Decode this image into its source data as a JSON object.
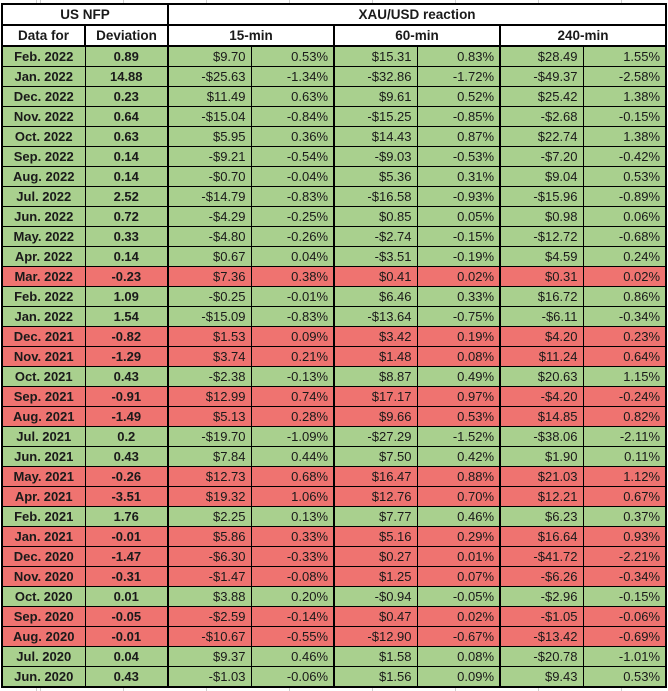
{
  "colors": {
    "positive_row": "#A9D08E",
    "negative_row": "#EF7370",
    "border": "#000000",
    "header_background": "#FFFFFF"
  },
  "chart_data": {
    "type": "table",
    "header": {
      "us_nfp": "US NFP",
      "reaction": "XAU/USD reaction",
      "data_for": "Data for",
      "deviation": "Deviation",
      "timeframes": [
        "15-min",
        "60-min",
        "240-min"
      ]
    },
    "columns": [
      "Data for",
      "Deviation",
      "15-min $",
      "15-min %",
      "60-min $",
      "60-min %",
      "240-min $",
      "240-min %"
    ],
    "rows": [
      {
        "tone": "green",
        "cells": [
          "Feb. 2022",
          "0.89",
          "$9.70",
          "0.53%",
          "$15.31",
          "0.83%",
          "$28.49",
          "1.55%"
        ]
      },
      {
        "tone": "green",
        "cells": [
          "Jan. 2022",
          "14.88",
          "-$25.63",
          "-1.34%",
          "-$32.86",
          "-1.72%",
          "-$49.37",
          "-2.58%"
        ]
      },
      {
        "tone": "green",
        "cells": [
          "Dec. 2022",
          "0.23",
          "$11.49",
          "0.63%",
          "$9.61",
          "0.52%",
          "$25.42",
          "1.38%"
        ]
      },
      {
        "tone": "green",
        "cells": [
          "Nov. 2022",
          "0.64",
          "-$15.04",
          "-0.84%",
          "-$15.25",
          "-0.85%",
          "-$2.68",
          "-0.15%"
        ]
      },
      {
        "tone": "green",
        "cells": [
          "Oct. 2022",
          "0.63",
          "$5.95",
          "0.36%",
          "$14.43",
          "0.87%",
          "$22.74",
          "1.38%"
        ]
      },
      {
        "tone": "green",
        "cells": [
          "Sep. 2022",
          "0.14",
          "-$9.21",
          "-0.54%",
          "-$9.03",
          "-0.53%",
          "-$7.20",
          "-0.42%"
        ]
      },
      {
        "tone": "green",
        "cells": [
          "Aug. 2022",
          "0.14",
          "-$0.70",
          "-0.04%",
          "$5.36",
          "0.31%",
          "$9.04",
          "0.53%"
        ]
      },
      {
        "tone": "green",
        "cells": [
          "Jul. 2022",
          "2.52",
          "-$14.79",
          "-0.83%",
          "-$16.58",
          "-0.93%",
          "-$15.96",
          "-0.89%"
        ]
      },
      {
        "tone": "green",
        "cells": [
          "Jun. 2022",
          "0.72",
          "-$4.29",
          "-0.25%",
          "$0.85",
          "0.05%",
          "$0.98",
          "0.06%"
        ]
      },
      {
        "tone": "green",
        "cells": [
          "May. 2022",
          "0.33",
          "-$4.80",
          "-0.26%",
          "-$2.74",
          "-0.15%",
          "-$12.72",
          "-0.68%"
        ]
      },
      {
        "tone": "green",
        "cells": [
          "Apr. 2022",
          "0.14",
          "$0.67",
          "0.04%",
          "-$3.51",
          "-0.19%",
          "$4.59",
          "0.24%"
        ]
      },
      {
        "tone": "red",
        "cells": [
          "Mar. 2022",
          "-0.23",
          "$7.36",
          "0.38%",
          "$0.41",
          "0.02%",
          "$0.31",
          "0.02%"
        ]
      },
      {
        "tone": "green",
        "cells": [
          "Feb. 2022",
          "1.09",
          "-$0.25",
          "-0.01%",
          "$6.46",
          "0.33%",
          "$16.72",
          "0.86%"
        ]
      },
      {
        "tone": "green",
        "cells": [
          "Jan. 2022",
          "1.54",
          "-$15.09",
          "-0.83%",
          "-$13.64",
          "-0.75%",
          "-$6.11",
          "-0.34%"
        ]
      },
      {
        "tone": "red",
        "cells": [
          "Dec. 2021",
          "-0.82",
          "$1.53",
          "0.09%",
          "$3.42",
          "0.19%",
          "$4.20",
          "0.23%"
        ]
      },
      {
        "tone": "red",
        "cells": [
          "Nov. 2021",
          "-1.29",
          "$3.74",
          "0.21%",
          "$1.48",
          "0.08%",
          "$11.24",
          "0.64%"
        ]
      },
      {
        "tone": "green",
        "cells": [
          "Oct. 2021",
          "0.43",
          "-$2.38",
          "-0.13%",
          "$8.87",
          "0.49%",
          "$20.63",
          "1.15%"
        ]
      },
      {
        "tone": "red",
        "cells": [
          "Sep. 2021",
          "-0.91",
          "$12.99",
          "0.74%",
          "$17.17",
          "0.97%",
          "-$4.20",
          "-0.24%"
        ]
      },
      {
        "tone": "red",
        "cells": [
          "Aug. 2021",
          "-1.49",
          "$5.13",
          "0.28%",
          "$9.66",
          "0.53%",
          "$14.85",
          "0.82%"
        ]
      },
      {
        "tone": "green",
        "cells": [
          "Jul. 2021",
          "0.2",
          "-$19.70",
          "-1.09%",
          "-$27.29",
          "-1.52%",
          "-$38.06",
          "-2.11%"
        ]
      },
      {
        "tone": "green",
        "cells": [
          "Jun. 2021",
          "0.43",
          "$7.84",
          "0.44%",
          "$7.50",
          "0.42%",
          "$1.90",
          "0.11%"
        ]
      },
      {
        "tone": "red",
        "cells": [
          "May. 2021",
          "-0.26",
          "$12.73",
          "0.68%",
          "$16.47",
          "0.88%",
          "$21.03",
          "1.12%"
        ]
      },
      {
        "tone": "red",
        "cells": [
          "Apr. 2021",
          "-3.51",
          "$19.32",
          "1.06%",
          "$12.76",
          "0.70%",
          "$12.21",
          "0.67%"
        ]
      },
      {
        "tone": "green",
        "cells": [
          "Feb. 2021",
          "1.76",
          "$2.25",
          "0.13%",
          "$7.77",
          "0.46%",
          "$6.23",
          "0.37%"
        ]
      },
      {
        "tone": "red",
        "cells": [
          "Jan. 2021",
          "-0.01",
          "$5.86",
          "0.33%",
          "$5.16",
          "0.29%",
          "$16.64",
          "0.93%"
        ]
      },
      {
        "tone": "red",
        "cells": [
          "Dec. 2020",
          "-1.47",
          "-$6.30",
          "-0.33%",
          "$0.27",
          "0.01%",
          "-$41.72",
          "-2.21%"
        ]
      },
      {
        "tone": "red",
        "cells": [
          "Nov. 2020",
          "-0.31",
          "-$1.47",
          "-0.08%",
          "$1.25",
          "0.07%",
          "-$6.26",
          "-0.34%"
        ]
      },
      {
        "tone": "green",
        "cells": [
          "Oct. 2020",
          "0.01",
          "$3.88",
          "0.20%",
          "-$0.94",
          "-0.05%",
          "-$2.96",
          "-0.15%"
        ]
      },
      {
        "tone": "red",
        "cells": [
          "Sep. 2020",
          "-0.05",
          "-$2.59",
          "-0.14%",
          "$0.47",
          "0.02%",
          "-$1.05",
          "-0.06%"
        ]
      },
      {
        "tone": "red",
        "cells": [
          "Aug. 2020",
          "-0.01",
          "-$10.67",
          "-0.55%",
          "-$12.90",
          "-0.67%",
          "-$13.42",
          "-0.69%"
        ]
      },
      {
        "tone": "green",
        "cells": [
          "Jul. 2020",
          "0.04",
          "$9.37",
          "0.46%",
          "$1.58",
          "0.08%",
          "-$20.78",
          "-1.01%"
        ]
      },
      {
        "tone": "green",
        "cells": [
          "Jun. 2020",
          "0.43",
          "-$1.03",
          "-0.06%",
          "$1.56",
          "0.09%",
          "$9.43",
          "0.53%"
        ]
      }
    ]
  }
}
